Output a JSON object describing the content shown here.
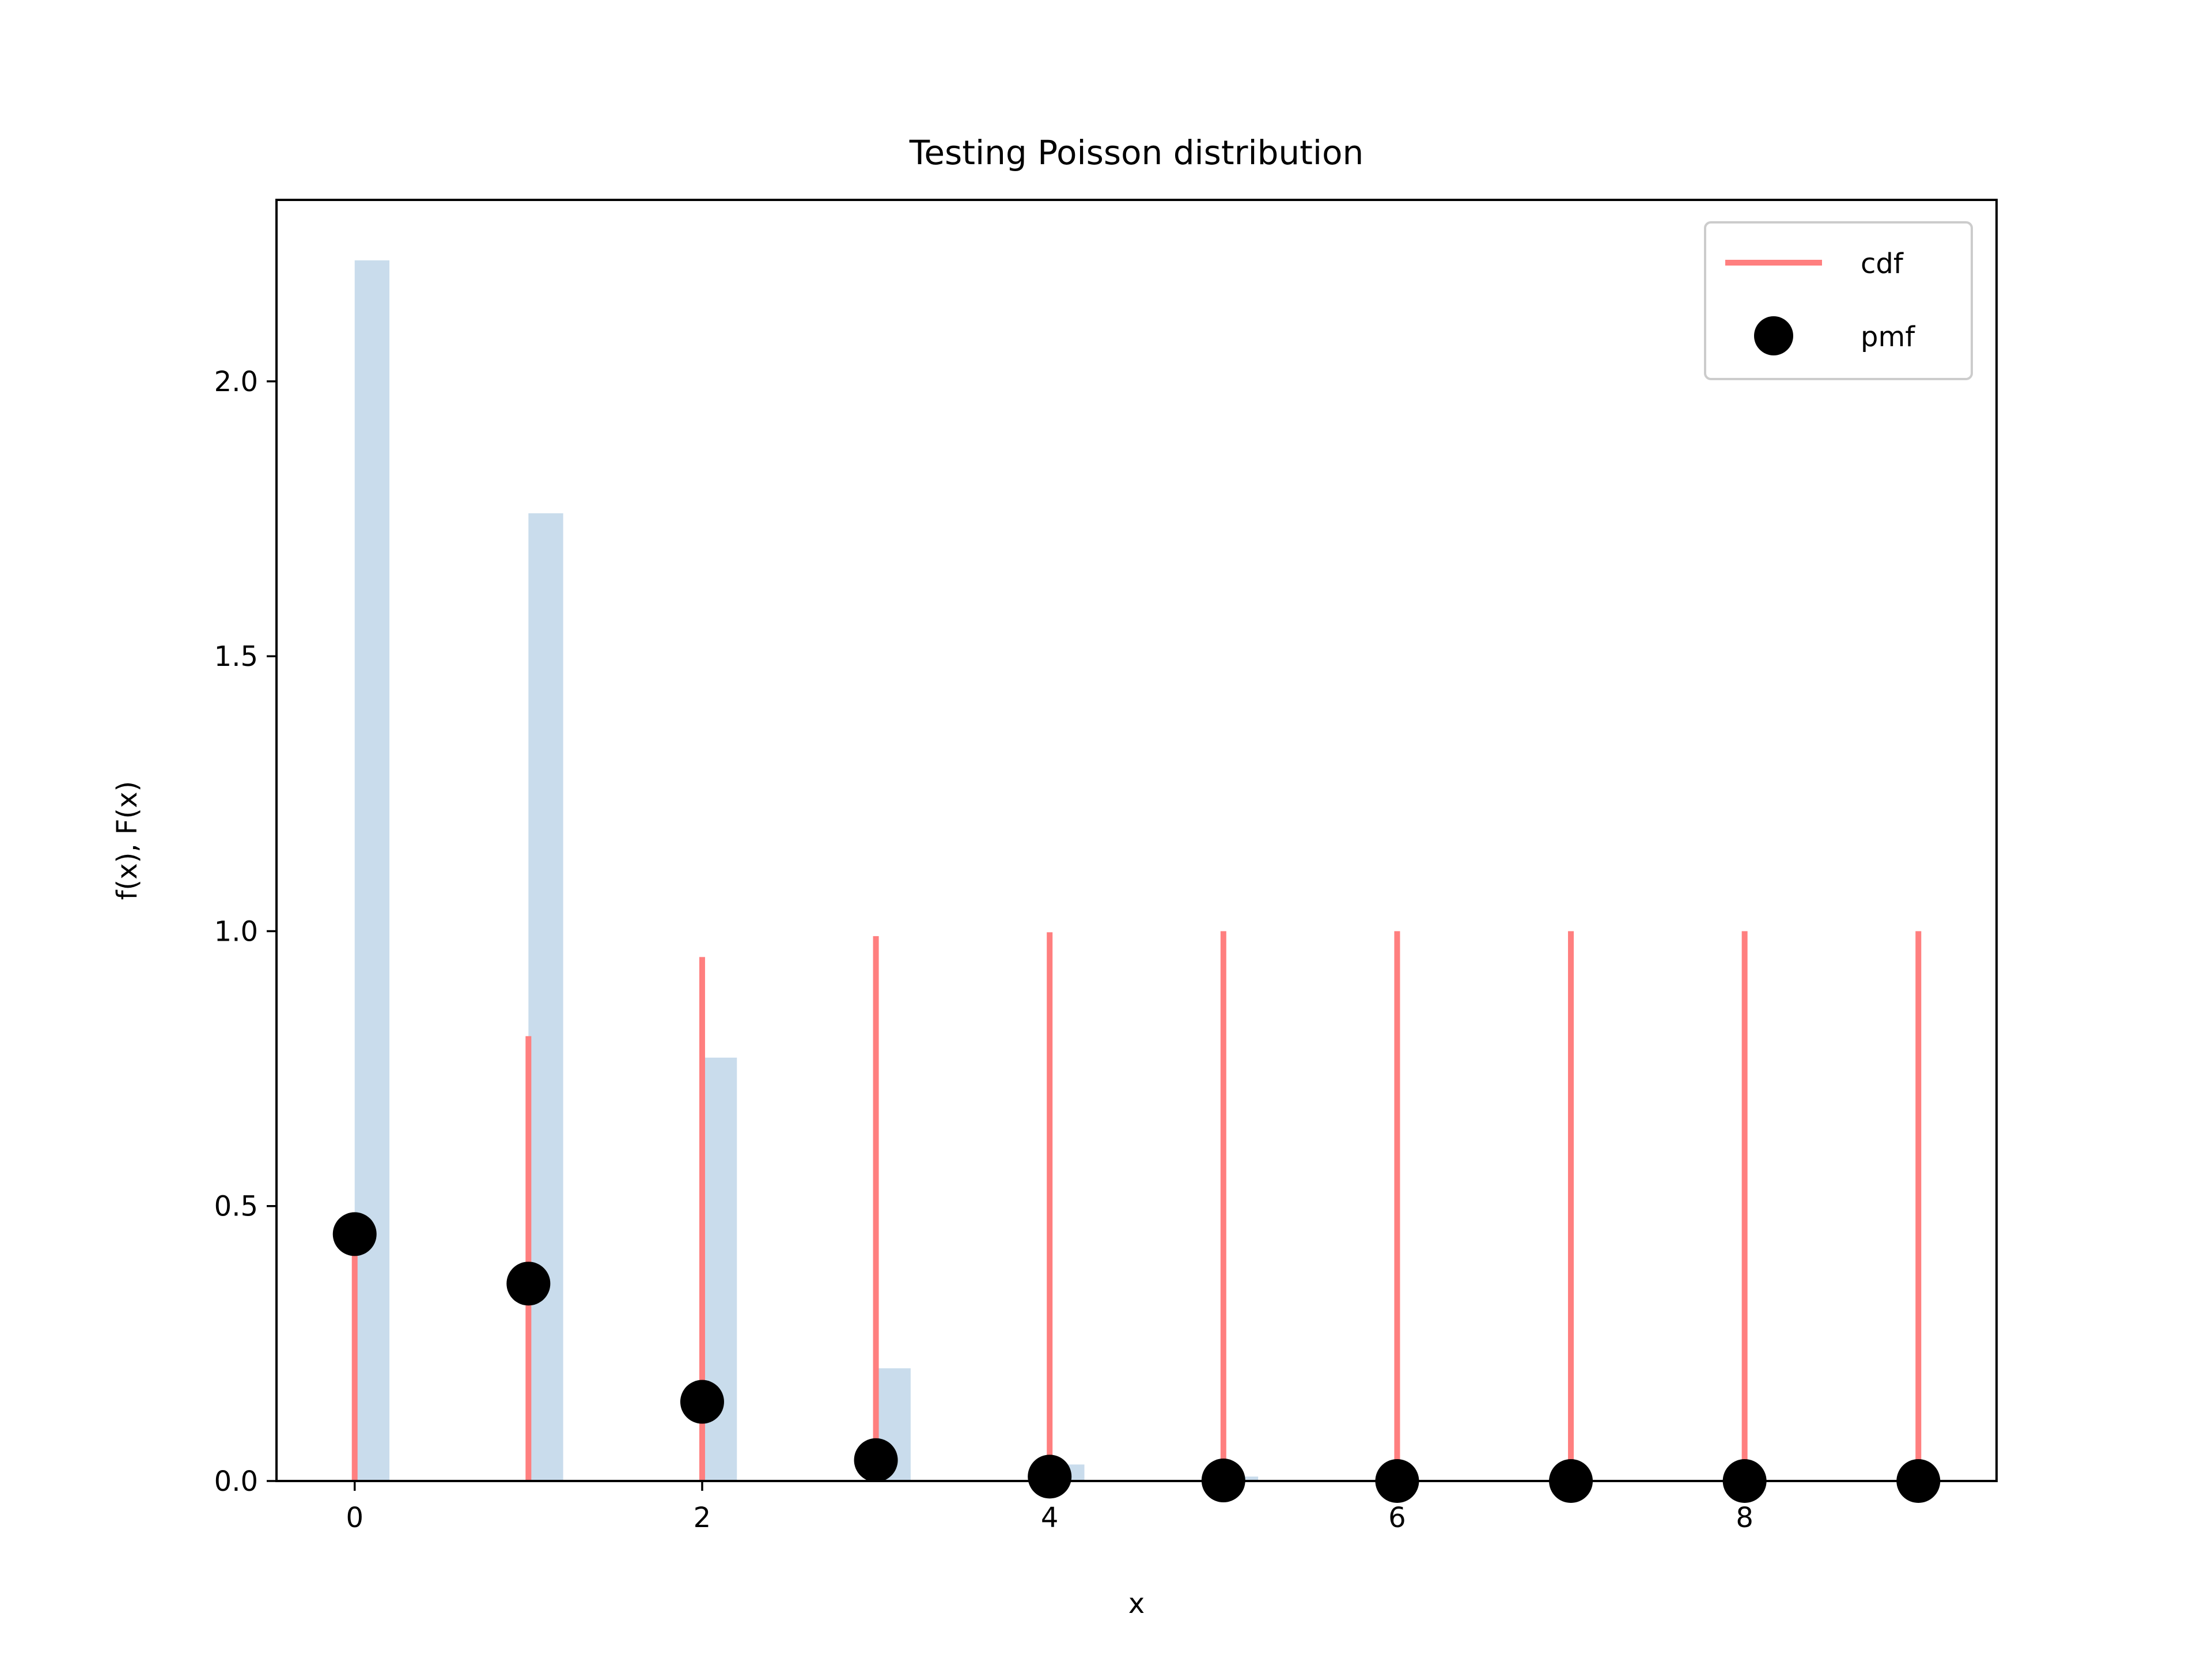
{
  "chart_data": {
    "type": "bar",
    "title": "Testing Poisson distribution",
    "xlabel": "x",
    "ylabel": "f(x), F(x)",
    "xlim": [
      -0.45,
      9.45
    ],
    "ylim": [
      0,
      2.33
    ],
    "xticks": [
      0,
      2,
      4,
      6,
      8
    ],
    "yticks": [
      0.0,
      0.5,
      1.0,
      1.5,
      2.0
    ],
    "grid": false,
    "legend_position": "top-right",
    "histogram": {
      "color": "#c9dcec",
      "bin_width": 0.2,
      "bins": [
        {
          "x": 0,
          "height": 2.22
        },
        {
          "x": 1,
          "height": 1.76
        },
        {
          "x": 2,
          "height": 0.77
        },
        {
          "x": 3,
          "height": 0.205
        },
        {
          "x": 4,
          "height": 0.03
        },
        {
          "x": 5,
          "height": 0.008
        }
      ]
    },
    "series": [
      {
        "name": "cdf",
        "kind": "vlines",
        "color": "#ff7f7f",
        "x": [
          0,
          1,
          2,
          3,
          4,
          5,
          6,
          7,
          8,
          9
        ],
        "values": [
          0.449,
          0.809,
          0.953,
          0.991,
          0.998,
          1.0,
          1.0,
          1.0,
          1.0,
          1.0
        ]
      },
      {
        "name": "pmf",
        "kind": "points",
        "color": "#000000",
        "x": [
          0,
          1,
          2,
          3,
          4,
          5,
          6,
          7,
          8,
          9
        ],
        "values": [
          0.449,
          0.359,
          0.144,
          0.038,
          0.008,
          0.001,
          0.0,
          0.0,
          0.0,
          0.0
        ]
      }
    ]
  }
}
